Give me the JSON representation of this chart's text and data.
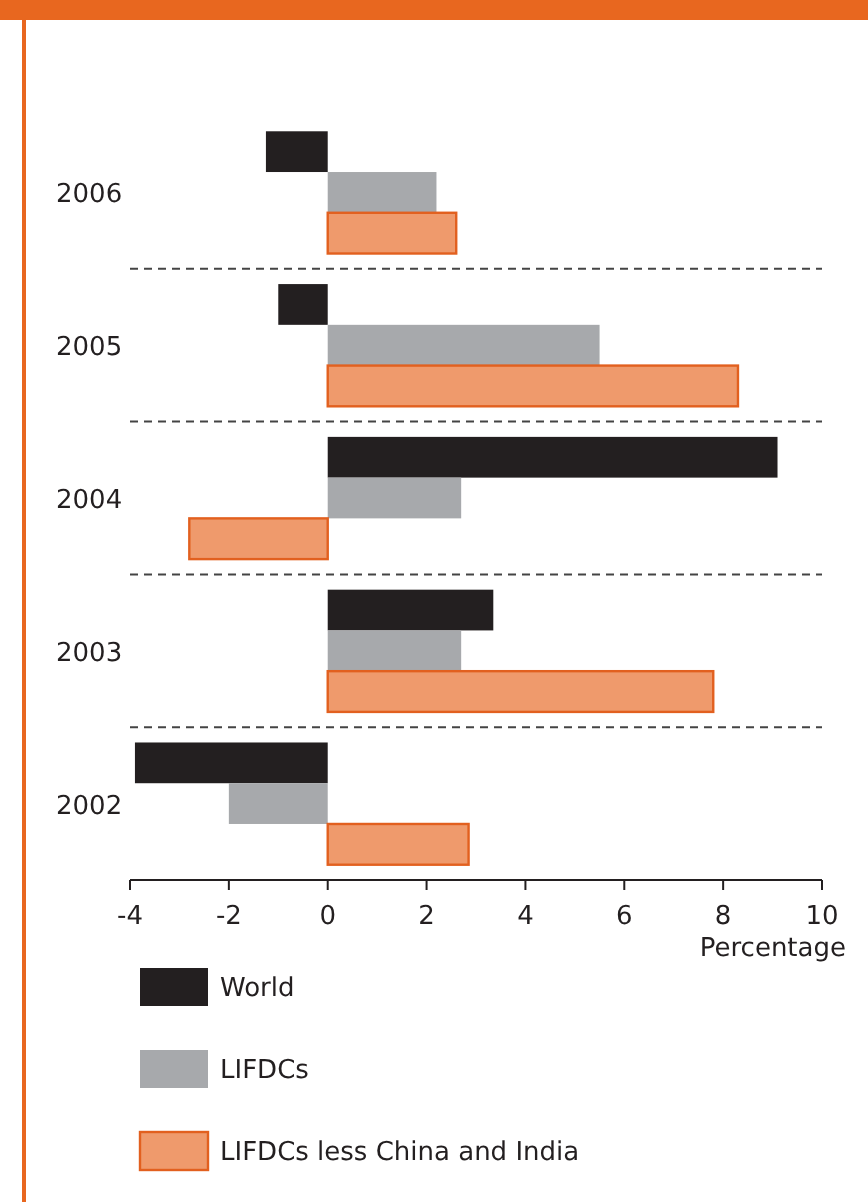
{
  "chart_data": {
    "type": "bar",
    "orientation": "horizontal",
    "xlabel": "Percentage",
    "categories": [
      "2006",
      "2005",
      "2004",
      "2003",
      "2002"
    ],
    "series": [
      {
        "name": "World",
        "color": "#231f20",
        "values": [
          -1.25,
          -1.0,
          9.1,
          3.35,
          -3.9
        ]
      },
      {
        "name": "LIFDCs",
        "color": "#a7a9ac",
        "values": [
          2.2,
          5.5,
          2.7,
          2.7,
          -2.0
        ]
      },
      {
        "name": "LIFDCs less China and India",
        "color": "#ef9a6c",
        "values": [
          2.6,
          8.3,
          -2.8,
          7.8,
          2.85
        ]
      }
    ],
    "xlim": [
      -4,
      10
    ],
    "xticks": [
      -4,
      -2,
      0,
      2,
      4,
      6,
      8,
      10
    ],
    "grid": "y",
    "legend": "bottom"
  }
}
